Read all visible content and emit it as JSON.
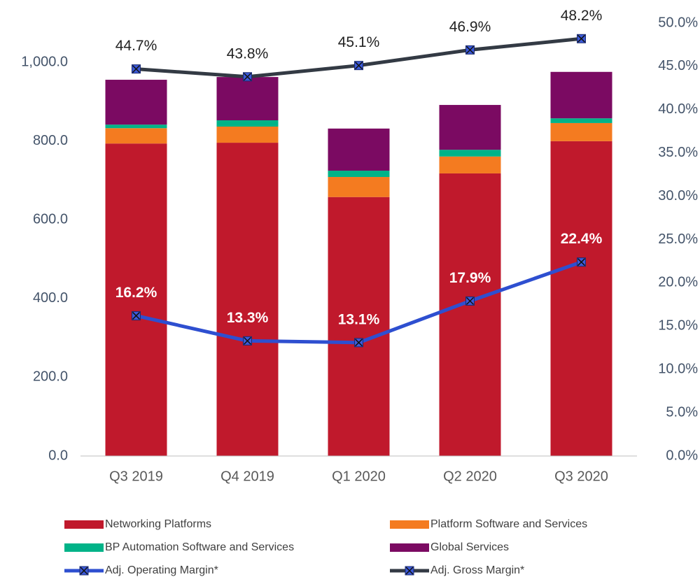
{
  "chart_data": {
    "type": "bar",
    "stacked": true,
    "categories": [
      "Q3 2019",
      "Q4 2019",
      "Q1 2020",
      "Q2 2020",
      "Q3 2020"
    ],
    "series": [
      {
        "name": "Networking Platforms",
        "type": "bar",
        "color": "#c0192c",
        "values": [
          794,
          796,
          658,
          718,
          800
        ]
      },
      {
        "name": "Platform Software and Services",
        "type": "bar",
        "color": "#f47b20",
        "values": [
          39,
          41,
          51,
          43,
          46
        ]
      },
      {
        "name": "BP Automation Software and Services",
        "type": "bar",
        "color": "#00b388",
        "values": [
          9,
          16,
          16,
          17,
          12
        ]
      },
      {
        "name": "Global Services",
        "type": "bar",
        "color": "#7b0a62",
        "values": [
          114,
          110,
          107,
          114,
          118
        ]
      },
      {
        "name": "Adj. Operating Margin*",
        "type": "line",
        "axis": "y2",
        "color": "#2e4fd0",
        "label_color": "#ffffff",
        "label_bold": true,
        "values": [
          16.2,
          13.3,
          13.1,
          17.9,
          22.4
        ],
        "value_labels": [
          "16.2%",
          "13.3%",
          "13.1%",
          "17.9%",
          "22.4%"
        ]
      },
      {
        "name": "Adj. Gross Margin*",
        "type": "line",
        "axis": "y2",
        "color": "#333a44",
        "label_color": "#222222",
        "label_bold": false,
        "values": [
          44.7,
          43.8,
          45.1,
          46.9,
          48.2
        ],
        "value_labels": [
          "44.7%",
          "43.8%",
          "45.1%",
          "46.9%",
          "48.2%"
        ]
      }
    ],
    "ylim": [
      0,
      1100
    ],
    "yticks": [
      {
        "value": 0,
        "label": "0.0"
      },
      {
        "value": 200,
        "label": "200.0"
      },
      {
        "value": 400,
        "label": "400.0"
      },
      {
        "value": 600,
        "label": "600.0"
      },
      {
        "value": 800,
        "label": "800.0"
      },
      {
        "value": 1000,
        "label": "1,000.0"
      }
    ],
    "y2lim": [
      0,
      50
    ],
    "y2ticks": [
      {
        "value": 0,
        "label": "0.0%"
      },
      {
        "value": 5,
        "label": "5.0%"
      },
      {
        "value": 10,
        "label": "10.0%"
      },
      {
        "value": 15,
        "label": "15.0%"
      },
      {
        "value": 20,
        "label": "20.0%"
      },
      {
        "value": 25,
        "label": "25.0%"
      },
      {
        "value": 30,
        "label": "30.0%"
      },
      {
        "value": 35,
        "label": "35.0%"
      },
      {
        "value": 40,
        "label": "40.0%"
      },
      {
        "value": 45,
        "label": "45.0%"
      },
      {
        "value": 50,
        "label": "50.0%"
      }
    ],
    "grid": false,
    "legend": "bottom"
  }
}
